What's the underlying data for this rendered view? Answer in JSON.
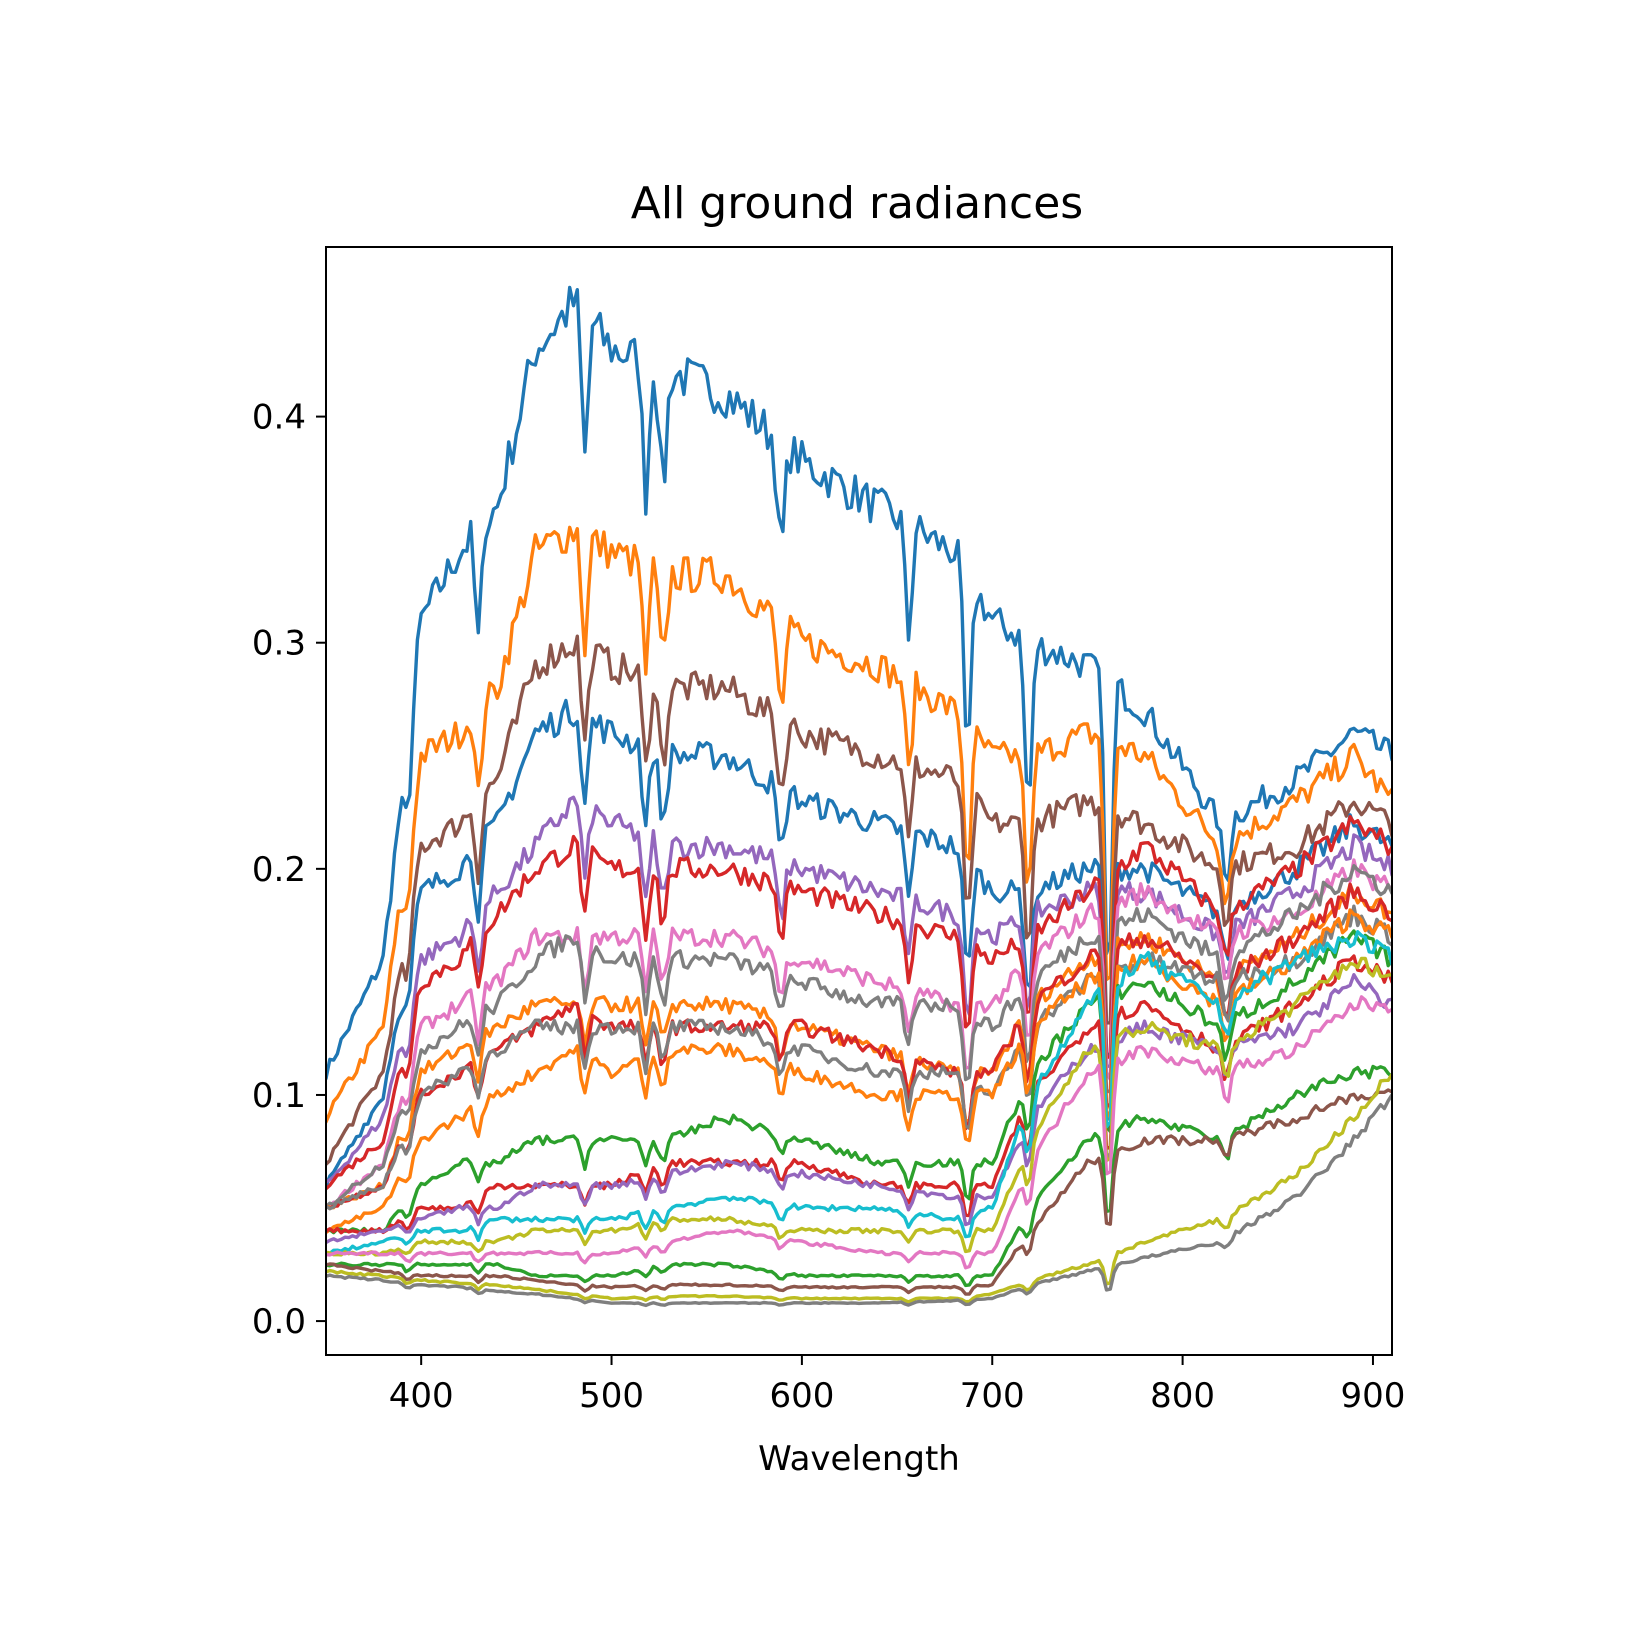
{
  "chart_data": {
    "type": "line",
    "title": "All ground radiances",
    "xlabel": "Wavelength",
    "ylabel": "",
    "xlim": [
      350,
      910
    ],
    "ylim": [
      -0.015,
      0.475
    ],
    "x_ticks": [
      400,
      500,
      600,
      700,
      800,
      900
    ],
    "y_ticks": [
      0.0,
      0.1,
      0.2,
      0.3,
      0.4
    ],
    "grid": false,
    "legend": "none",
    "palette": [
      "#1f77b4",
      "#ff7f0e",
      "#2ca02c",
      "#d62728",
      "#9467bd",
      "#8c564b",
      "#e377c2",
      "#7f7f7f",
      "#bcbd22",
      "#17becf"
    ],
    "absorption_features_nm": [
      393,
      430,
      486,
      518,
      527,
      589,
      656,
      687,
      719,
      761,
      823
    ],
    "series": [
      {
        "color": "#1f77b4",
        "x": [
          350,
          380,
          400,
          420,
          440,
          460,
          480,
          500,
          530,
          560,
          600,
          640,
          680,
          700,
          720,
          750,
          780,
          820,
          860,
          890,
          910
        ],
        "y": [
          0.11,
          0.16,
          0.31,
          0.34,
          0.36,
          0.43,
          0.45,
          0.43,
          0.42,
          0.41,
          0.38,
          0.36,
          0.34,
          0.31,
          0.3,
          0.29,
          0.27,
          0.22,
          0.24,
          0.26,
          0.25
        ]
      },
      {
        "color": "#ff7f0e",
        "x": [
          350,
          380,
          400,
          420,
          440,
          460,
          480,
          500,
          530,
          560,
          600,
          640,
          680,
          700,
          720,
          750,
          780,
          820,
          860,
          890,
          910
        ],
        "y": [
          0.09,
          0.13,
          0.25,
          0.26,
          0.28,
          0.34,
          0.35,
          0.34,
          0.33,
          0.33,
          0.3,
          0.29,
          0.27,
          0.25,
          0.25,
          0.26,
          0.25,
          0.21,
          0.23,
          0.25,
          0.23
        ]
      },
      {
        "color": "#8c564b",
        "x": [
          350,
          380,
          400,
          420,
          440,
          460,
          480,
          500,
          530,
          560,
          600,
          640,
          680,
          700,
          720,
          750,
          780,
          820,
          860,
          890,
          910
        ],
        "y": [
          0.07,
          0.11,
          0.21,
          0.22,
          0.24,
          0.29,
          0.3,
          0.29,
          0.28,
          0.28,
          0.26,
          0.25,
          0.24,
          0.22,
          0.22,
          0.23,
          0.22,
          0.2,
          0.21,
          0.23,
          0.22
        ]
      },
      {
        "color": "#1f77b4",
        "x": [
          350,
          380,
          400,
          420,
          440,
          460,
          480,
          500,
          530,
          560,
          600,
          640,
          680,
          700,
          720,
          750,
          780,
          820,
          860,
          890,
          910
        ],
        "y": [
          0.06,
          0.1,
          0.19,
          0.2,
          0.22,
          0.26,
          0.27,
          0.26,
          0.25,
          0.25,
          0.23,
          0.22,
          0.21,
          0.19,
          0.19,
          0.2,
          0.2,
          0.18,
          0.2,
          0.22,
          0.21
        ]
      },
      {
        "color": "#9467bd",
        "x": [
          350,
          380,
          400,
          420,
          440,
          460,
          480,
          500,
          530,
          560,
          600,
          640,
          680,
          700,
          720,
          750,
          780,
          820,
          860,
          890,
          910
        ],
        "y": [
          0.06,
          0.09,
          0.16,
          0.17,
          0.19,
          0.21,
          0.23,
          0.22,
          0.21,
          0.21,
          0.2,
          0.19,
          0.18,
          0.17,
          0.18,
          0.19,
          0.19,
          0.17,
          0.19,
          0.21,
          0.2
        ]
      },
      {
        "color": "#d62728",
        "x": [
          350,
          380,
          400,
          420,
          440,
          460,
          480,
          500,
          530,
          560,
          600,
          640,
          680,
          700,
          720,
          750,
          780,
          820,
          860,
          890,
          910
        ],
        "y": [
          0.06,
          0.08,
          0.15,
          0.16,
          0.18,
          0.2,
          0.21,
          0.2,
          0.2,
          0.2,
          0.19,
          0.18,
          0.17,
          0.16,
          0.17,
          0.19,
          0.21,
          0.18,
          0.2,
          0.22,
          0.21
        ]
      },
      {
        "color": "#e377c2",
        "x": [
          350,
          380,
          400,
          420,
          440,
          460,
          480,
          500,
          530,
          560,
          600,
          640,
          680,
          700,
          720,
          750,
          780,
          820,
          860,
          890,
          910
        ],
        "y": [
          0.05,
          0.07,
          0.13,
          0.14,
          0.15,
          0.17,
          0.17,
          0.17,
          0.17,
          0.17,
          0.16,
          0.15,
          0.14,
          0.14,
          0.16,
          0.18,
          0.19,
          0.17,
          0.18,
          0.2,
          0.19
        ]
      },
      {
        "color": "#7f7f7f",
        "x": [
          350,
          380,
          400,
          420,
          440,
          460,
          480,
          500,
          530,
          560,
          600,
          640,
          680,
          700,
          720,
          750,
          780,
          820,
          860,
          890,
          910
        ],
        "y": [
          0.05,
          0.07,
          0.12,
          0.13,
          0.14,
          0.16,
          0.17,
          0.16,
          0.16,
          0.16,
          0.15,
          0.14,
          0.14,
          0.13,
          0.15,
          0.17,
          0.18,
          0.16,
          0.18,
          0.2,
          0.19
        ]
      },
      {
        "color": "#ff7f0e",
        "x": [
          350,
          380,
          400,
          420,
          440,
          460,
          480,
          500,
          530,
          560,
          600,
          640,
          680,
          700,
          720,
          750,
          780,
          820,
          860,
          890,
          910
        ],
        "y": [
          0.05,
          0.06,
          0.11,
          0.12,
          0.13,
          0.14,
          0.14,
          0.14,
          0.14,
          0.14,
          0.13,
          0.12,
          0.11,
          0.11,
          0.14,
          0.16,
          0.17,
          0.15,
          0.17,
          0.19,
          0.18
        ]
      },
      {
        "color": "#d62728",
        "x": [
          350,
          380,
          400,
          420,
          440,
          460,
          480,
          500,
          530,
          560,
          600,
          640,
          680,
          700,
          720,
          750,
          780,
          820,
          860,
          890,
          910
        ],
        "y": [
          0.05,
          0.06,
          0.1,
          0.11,
          0.12,
          0.13,
          0.14,
          0.13,
          0.13,
          0.13,
          0.13,
          0.12,
          0.11,
          0.11,
          0.14,
          0.16,
          0.17,
          0.15,
          0.17,
          0.19,
          0.18
        ]
      },
      {
        "color": "#7f7f7f",
        "x": [
          350,
          380,
          400,
          420,
          440,
          460,
          480,
          500,
          530,
          560,
          600,
          640,
          680,
          700,
          720,
          750,
          780,
          820,
          860,
          890,
          910
        ],
        "y": [
          0.05,
          0.06,
          0.1,
          0.11,
          0.12,
          0.13,
          0.13,
          0.13,
          0.13,
          0.13,
          0.12,
          0.11,
          0.11,
          0.1,
          0.13,
          0.15,
          0.16,
          0.15,
          0.16,
          0.18,
          0.17
        ]
      },
      {
        "color": "#ff7f0e",
        "x": [
          350,
          380,
          400,
          420,
          440,
          460,
          480,
          500,
          530,
          560,
          600,
          640,
          680,
          700,
          720,
          750,
          780,
          820,
          860,
          890,
          910
        ],
        "y": [
          0.04,
          0.05,
          0.08,
          0.09,
          0.1,
          0.11,
          0.12,
          0.11,
          0.12,
          0.12,
          0.11,
          0.1,
          0.1,
          0.1,
          0.13,
          0.15,
          0.16,
          0.14,
          0.16,
          0.18,
          0.17
        ]
      },
      {
        "color": "#2ca02c",
        "x": [
          350,
          380,
          400,
          420,
          440,
          460,
          480,
          500,
          530,
          560,
          600,
          640,
          680,
          700,
          720,
          750,
          780,
          820,
          860,
          890,
          910
        ],
        "y": [
          0.04,
          0.04,
          0.06,
          0.07,
          0.07,
          0.08,
          0.08,
          0.08,
          0.08,
          0.09,
          0.08,
          0.07,
          0.07,
          0.07,
          0.11,
          0.14,
          0.15,
          0.13,
          0.15,
          0.17,
          0.16
        ]
      },
      {
        "color": "#d62728",
        "x": [
          350,
          380,
          400,
          420,
          440,
          460,
          480,
          500,
          530,
          560,
          600,
          640,
          680,
          700,
          720,
          750,
          780,
          820,
          860,
          890,
          910
        ],
        "y": [
          0.04,
          0.04,
          0.05,
          0.05,
          0.06,
          0.06,
          0.06,
          0.06,
          0.07,
          0.07,
          0.07,
          0.06,
          0.06,
          0.06,
          0.1,
          0.13,
          0.14,
          0.12,
          0.14,
          0.16,
          0.15
        ]
      },
      {
        "color": "#9467bd",
        "x": [
          350,
          380,
          400,
          420,
          440,
          460,
          480,
          500,
          530,
          560,
          600,
          640,
          680,
          700,
          720,
          750,
          780,
          820,
          860,
          890,
          910
        ],
        "y": [
          0.035,
          0.04,
          0.045,
          0.05,
          0.05,
          0.06,
          0.06,
          0.06,
          0.065,
          0.07,
          0.065,
          0.06,
          0.055,
          0.055,
          0.09,
          0.12,
          0.13,
          0.12,
          0.13,
          0.15,
          0.14
        ]
      },
      {
        "color": "#17becf",
        "x": [
          350,
          380,
          400,
          420,
          440,
          460,
          480,
          500,
          530,
          560,
          600,
          640,
          680,
          700,
          720,
          750,
          780,
          820,
          860,
          890,
          910
        ],
        "y": [
          0.03,
          0.035,
          0.04,
          0.04,
          0.045,
          0.045,
          0.045,
          0.045,
          0.05,
          0.055,
          0.05,
          0.05,
          0.045,
          0.05,
          0.1,
          0.14,
          0.16,
          0.14,
          0.16,
          0.17,
          0.16
        ]
      },
      {
        "color": "#bcbd22",
        "x": [
          350,
          380,
          400,
          420,
          440,
          460,
          480,
          500,
          530,
          560,
          600,
          640,
          680,
          700,
          720,
          750,
          780,
          820,
          860,
          890,
          910
        ],
        "y": [
          0.03,
          0.03,
          0.035,
          0.035,
          0.035,
          0.04,
          0.04,
          0.04,
          0.045,
          0.045,
          0.04,
          0.04,
          0.04,
          0.04,
          0.08,
          0.12,
          0.13,
          0.12,
          0.14,
          0.16,
          0.15
        ]
      },
      {
        "color": "#e377c2",
        "x": [
          350,
          380,
          400,
          420,
          440,
          460,
          480,
          500,
          530,
          560,
          600,
          640,
          680,
          700,
          720,
          750,
          780,
          820,
          860,
          890,
          910
        ],
        "y": [
          0.03,
          0.03,
          0.03,
          0.03,
          0.03,
          0.03,
          0.03,
          0.03,
          0.035,
          0.04,
          0.035,
          0.03,
          0.03,
          0.03,
          0.07,
          0.11,
          0.12,
          0.11,
          0.12,
          0.14,
          0.14
        ]
      },
      {
        "color": "#2ca02c",
        "x": [
          350,
          380,
          400,
          420,
          440,
          460,
          480,
          500,
          530,
          560,
          600,
          640,
          680,
          700,
          720,
          750,
          780,
          820,
          860,
          890,
          910
        ],
        "y": [
          0.025,
          0.025,
          0.025,
          0.025,
          0.025,
          0.02,
          0.02,
          0.02,
          0.025,
          0.025,
          0.02,
          0.02,
          0.02,
          0.02,
          0.05,
          0.08,
          0.09,
          0.08,
          0.1,
          0.11,
          0.11
        ]
      },
      {
        "color": "#8c564b",
        "x": [
          350,
          380,
          400,
          420,
          440,
          460,
          480,
          500,
          530,
          560,
          600,
          640,
          680,
          700,
          720,
          750,
          780,
          820,
          860,
          890,
          910
        ],
        "y": [
          0.025,
          0.022,
          0.02,
          0.02,
          0.02,
          0.018,
          0.016,
          0.015,
          0.016,
          0.016,
          0.015,
          0.015,
          0.015,
          0.016,
          0.04,
          0.07,
          0.08,
          0.08,
          0.09,
          0.1,
          0.1
        ]
      },
      {
        "color": "#bcbd22",
        "x": [
          350,
          380,
          400,
          420,
          440,
          460,
          480,
          500,
          530,
          560,
          600,
          640,
          680,
          700,
          720,
          750,
          780,
          820,
          860,
          890,
          910
        ],
        "y": [
          0.022,
          0.02,
          0.018,
          0.017,
          0.016,
          0.014,
          0.012,
          0.01,
          0.011,
          0.011,
          0.01,
          0.01,
          0.01,
          0.012,
          0.018,
          0.025,
          0.035,
          0.045,
          0.065,
          0.09,
          0.11
        ]
      },
      {
        "color": "#7f7f7f",
        "x": [
          350,
          380,
          400,
          420,
          440,
          460,
          480,
          500,
          530,
          560,
          600,
          640,
          680,
          700,
          720,
          750,
          780,
          820,
          860,
          890,
          910
        ],
        "y": [
          0.02,
          0.018,
          0.016,
          0.015,
          0.013,
          0.012,
          0.01,
          0.008,
          0.008,
          0.008,
          0.008,
          0.008,
          0.009,
          0.01,
          0.016,
          0.022,
          0.028,
          0.035,
          0.055,
          0.08,
          0.1
        ]
      }
    ]
  }
}
